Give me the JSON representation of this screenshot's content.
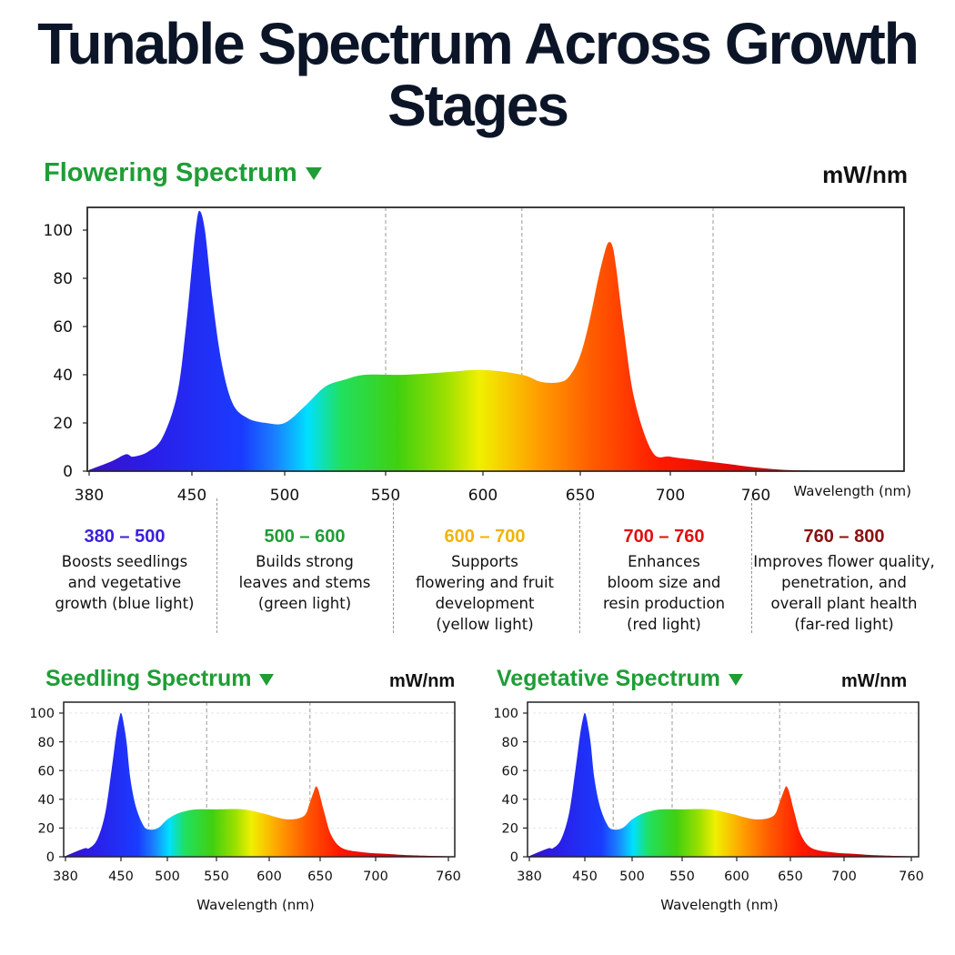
{
  "title": "Tunable Spectrum Across Growth Stages",
  "colors": {
    "heading_green": "#1f9d36",
    "title_navy": "#0b1527"
  },
  "flowering": {
    "heading": "Flowering Spectrum",
    "unit": "mW/nm",
    "x_axis_label": "Wavelength (nm)",
    "x_tick_labels": [
      "380",
      "450",
      "500",
      "550",
      "600",
      "650",
      "700",
      "760"
    ],
    "y_tick_labels": [
      "0",
      "20",
      "40",
      "60",
      "80",
      "100"
    ]
  },
  "seedling": {
    "heading": "Seedling Spectrum",
    "unit": "mW/nm",
    "x_axis_label": "Wavelength (nm)",
    "x_tick_labels": [
      "380",
      "450",
      "500",
      "550",
      "600",
      "650",
      "700",
      "760"
    ],
    "y_tick_labels": [
      "0",
      "20",
      "40",
      "60",
      "80",
      "100"
    ]
  },
  "vegetative": {
    "heading": "Vegetative Spectrum",
    "unit": "mW/nm",
    "x_axis_label": "Wavelength (nm)",
    "x_tick_labels": [
      "380",
      "450",
      "500",
      "550",
      "600",
      "650",
      "700",
      "760"
    ],
    "y_tick_labels": [
      "0",
      "20",
      "40",
      "60",
      "80",
      "100"
    ]
  },
  "bands": [
    {
      "range": "380 – 500",
      "color": "#3a1fe0",
      "lines": [
        "Boosts seedlings",
        "and vegetative",
        "growth (blue light)"
      ]
    },
    {
      "range": "500 – 600",
      "color": "#1f9d36",
      "lines": [
        "Builds strong",
        "leaves and stems",
        "(green light)"
      ]
    },
    {
      "range": "600 – 700",
      "color": "#f0b400",
      "lines": [
        "Supports",
        "flowering and fruit",
        "development",
        "(yellow light)"
      ]
    },
    {
      "range": "700 – 760",
      "color": "#e01010",
      "lines": [
        "Enhances",
        "bloom size and",
        "resin production",
        "(red light)"
      ]
    },
    {
      "range": "760 – 800",
      "color": "#8b1010",
      "lines": [
        "Improves flower quality,",
        "penetration, and",
        "overall plant health",
        "(far-red light)"
      ]
    }
  ],
  "chart_data": [
    {
      "type": "area",
      "title": "Flowering Spectrum",
      "ylabel": "mW/nm",
      "xlabel": "Wavelength (nm)",
      "ylim": [
        0,
        110
      ],
      "x_ticks": [
        380,
        450,
        500,
        550,
        600,
        650,
        700,
        760
      ],
      "y_ticks": [
        0,
        20,
        40,
        60,
        80,
        100
      ],
      "x": [
        380,
        395,
        405,
        410,
        420,
        430,
        440,
        446,
        450,
        452,
        454,
        457,
        461,
        466,
        472,
        480,
        490,
        500,
        510,
        520,
        530,
        540,
        560,
        580,
        600,
        620,
        630,
        640,
        645,
        650,
        655,
        660,
        664,
        666,
        668,
        670,
        674,
        680,
        690,
        700,
        720,
        740,
        760,
        780,
        800
      ],
      "series": [
        {
          "values": [
            0.5,
            4,
            7,
            6,
            8,
            14,
            32,
            60,
            85,
            100,
            108,
            100,
            72,
            45,
            28,
            22,
            20,
            20,
            27,
            35,
            38,
            40,
            40,
            41,
            42,
            40,
            37,
            37,
            40,
            48,
            62,
            80,
            92,
            95,
            93,
            84,
            60,
            30,
            8,
            6,
            4.5,
            3,
            1.5,
            0.5,
            0.2
          ]
        }
      ]
    },
    {
      "type": "area",
      "title": "Seedling Spectrum",
      "ylabel": "mW/nm",
      "xlabel": "Wavelength (nm)",
      "ylim": [
        0,
        105
      ],
      "x_ticks": [
        380,
        450,
        500,
        550,
        600,
        650,
        700,
        760
      ],
      "y_ticks": [
        0,
        20,
        40,
        60,
        80,
        100
      ],
      "x": [
        380,
        395,
        405,
        410,
        420,
        430,
        438,
        444,
        448,
        450,
        452,
        456,
        460,
        466,
        474,
        480,
        490,
        500,
        510,
        520,
        530,
        550,
        575,
        595,
        610,
        620,
        630,
        636,
        640,
        644,
        646,
        648,
        650,
        654,
        660,
        670,
        690,
        710,
        730,
        760
      ],
      "series": [
        {
          "values": [
            0.5,
            4,
            6,
            6,
            12,
            30,
            60,
            85,
            97,
            100,
            96,
            80,
            55,
            35,
            22,
            19,
            20,
            26,
            30,
            32,
            33,
            33,
            33,
            30,
            27,
            26,
            27,
            30,
            38,
            46,
            49,
            47,
            42,
            30,
            15,
            6,
            3,
            2,
            1,
            0.3
          ]
        }
      ]
    },
    {
      "type": "area",
      "title": "Vegetative Spectrum",
      "ylabel": "mW/nm",
      "xlabel": "Wavelength (nm)",
      "ylim": [
        0,
        105
      ],
      "x_ticks": [
        380,
        450,
        500,
        550,
        600,
        650,
        700,
        760
      ],
      "y_ticks": [
        0,
        20,
        40,
        60,
        80,
        100
      ],
      "x": [
        380,
        395,
        405,
        410,
        420,
        430,
        438,
        444,
        448,
        450,
        452,
        456,
        460,
        466,
        474,
        480,
        490,
        500,
        510,
        520,
        530,
        550,
        575,
        595,
        610,
        620,
        630,
        636,
        640,
        644,
        646,
        648,
        650,
        654,
        660,
        670,
        690,
        710,
        730,
        760
      ],
      "series": [
        {
          "values": [
            0.5,
            4,
            6,
            6,
            12,
            30,
            60,
            85,
            97,
            100,
            96,
            80,
            55,
            35,
            22,
            19,
            20,
            26,
            30,
            32,
            33,
            33,
            33,
            30,
            27,
            26,
            27,
            30,
            38,
            46,
            49,
            47,
            42,
            30,
            15,
            6,
            3,
            2,
            1,
            0.3
          ]
        }
      ]
    }
  ]
}
